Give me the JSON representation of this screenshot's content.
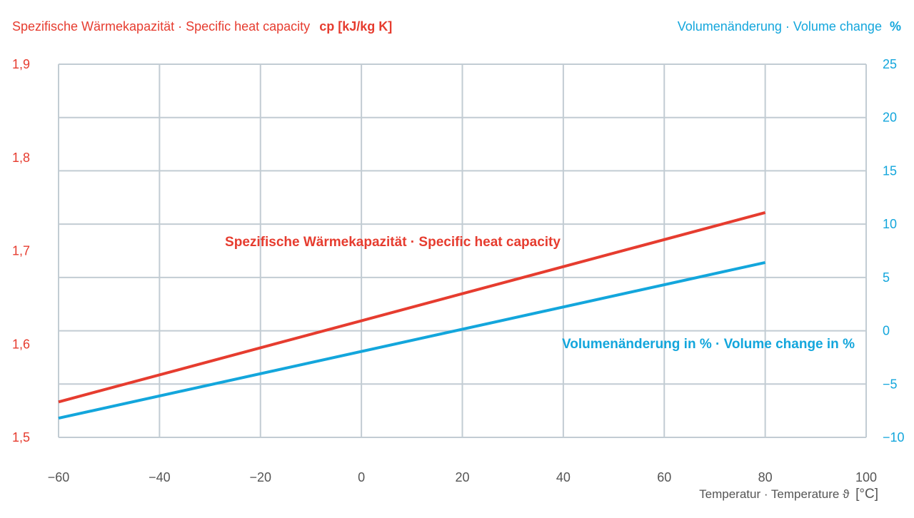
{
  "chart_data": {
    "type": "line",
    "x_label_text": "Temperatur · Temperature ",
    "x_label_symbol": "ϑ",
    "x_label_unit": "[°C]",
    "left_axis_label_text": "Spezifische Wärmekapazität · Specific heat capacity",
    "left_axis_label_unit": "cp [kJ/kg K]",
    "right_axis_label_text": "Volumenänderung · Volume change",
    "right_axis_label_unit": "%",
    "x_ticks": [
      "−60",
      "−40",
      "−20",
      "0",
      "20",
      "40",
      "60",
      "80",
      "100"
    ],
    "x_tick_values": [
      -60,
      -40,
      -20,
      0,
      20,
      40,
      60,
      80,
      100
    ],
    "xlim": [
      -60,
      100
    ],
    "left_ticks": [
      "1,9",
      "1,8",
      "1,7",
      "1,6",
      "1,5"
    ],
    "left_tick_values": [
      1.9,
      1.8,
      1.7,
      1.6,
      1.5
    ],
    "ylim_left": [
      1.5,
      1.9
    ],
    "right_ticks": [
      "25",
      "20",
      "15",
      "10",
      "5",
      "0",
      "−5",
      "−10"
    ],
    "right_tick_values": [
      25,
      20,
      15,
      10,
      5,
      0,
      -5,
      -10
    ],
    "ylim_right": [
      -10,
      25
    ],
    "grid": true,
    "series": [
      {
        "name": "Spezifische Wärmekapazität · Specific heat capacity",
        "axis": "left",
        "color": "#e63c2f",
        "x": [
          -60,
          80
        ],
        "y": [
          1.538,
          1.741
        ]
      },
      {
        "name": "Volumenänderung in % · Volume change in %",
        "axis": "right",
        "color": "#13a6dc",
        "x": [
          -60,
          80
        ],
        "y": [
          -8.2,
          6.4
        ]
      }
    ]
  }
}
